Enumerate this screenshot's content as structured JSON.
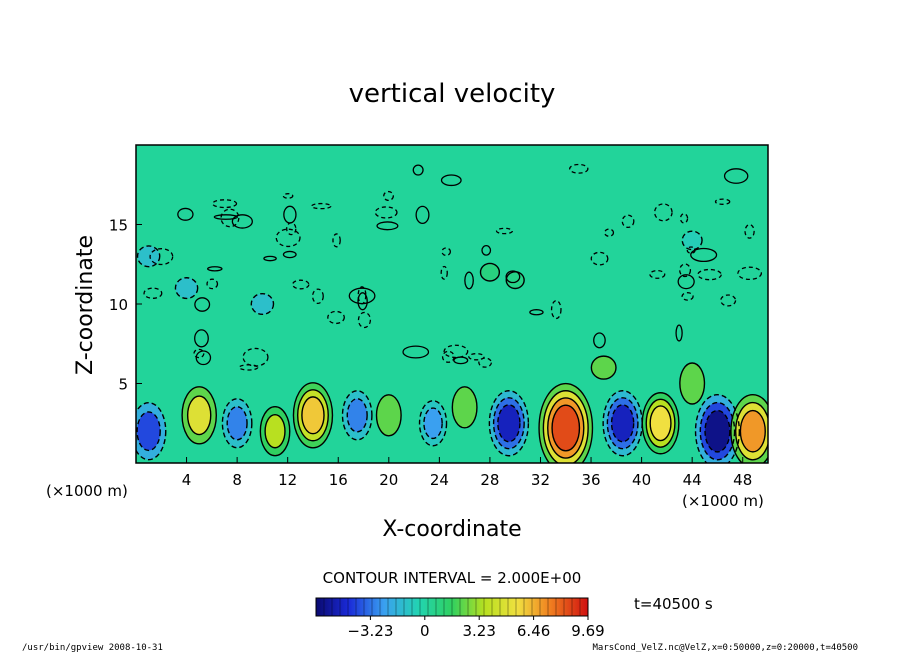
{
  "chart_data": {
    "type": "heatmap",
    "title": "vertical velocity",
    "xlabel": "X-coordinate",
    "ylabel": "Z-coordinate",
    "x_unit": "(×1000 m)",
    "y_unit": "(×1000 m)",
    "xlim": [
      0,
      50
    ],
    "ylim": [
      0,
      20
    ],
    "x_ticks": [
      4,
      8,
      12,
      16,
      20,
      24,
      28,
      32,
      36,
      40,
      44,
      48
    ],
    "y_ticks": [
      5,
      10,
      15
    ],
    "contour_interval_text": "CONTOUR INTERVAL = 2.000E+00",
    "time_label": "t=40500 s",
    "colorbar": {
      "range": [
        -6.46,
        9.69
      ],
      "tick_values": [
        -3.23,
        0,
        3.23,
        6.46,
        9.69
      ],
      "tick_labels": [
        "−3.23",
        "0",
        "3.23",
        "6.46",
        "9.69"
      ]
    },
    "features": [
      {
        "x": 34.0,
        "z": 2.2,
        "value": 8.0
      },
      {
        "x": 46.0,
        "z": 2.0,
        "value": -6.0
      },
      {
        "x": 48.8,
        "z": 2.0,
        "value": 6.0
      },
      {
        "x": 14.0,
        "z": 3.0,
        "value": 5.0
      },
      {
        "x": 41.5,
        "z": 2.5,
        "value": 4.5
      },
      {
        "x": 5.0,
        "z": 3.0,
        "value": 4.0
      },
      {
        "x": 29.5,
        "z": 2.5,
        "value": -5.0
      },
      {
        "x": 38.5,
        "z": 2.5,
        "value": -5.0
      },
      {
        "x": 1.0,
        "z": 2.0,
        "value": -4.0
      },
      {
        "x": 8.0,
        "z": 2.5,
        "value": -3.0
      },
      {
        "x": 17.5,
        "z": 3.0,
        "value": -3.0
      },
      {
        "x": 23.5,
        "z": 2.5,
        "value": -2.5
      },
      {
        "x": 11.0,
        "z": 2.0,
        "value": 3.0
      },
      {
        "x": 26.0,
        "z": 3.5,
        "value": 2.0
      },
      {
        "x": 20.0,
        "z": 3.0,
        "value": 2.0
      },
      {
        "x": 44.0,
        "z": 5.0,
        "value": 2.0
      },
      {
        "x": 37.0,
        "z": 6.0,
        "value": 2.0
      },
      {
        "x": 10.0,
        "z": 10.0,
        "value": -1.5
      },
      {
        "x": 4.0,
        "z": 11.0,
        "value": -1.5
      },
      {
        "x": 1.0,
        "z": 13.0,
        "value": -1.5
      },
      {
        "x": 28.0,
        "z": 12.0,
        "value": 0.8
      },
      {
        "x": 30.0,
        "z": 11.5,
        "value": 0.6
      },
      {
        "x": 44.0,
        "z": 14.0,
        "value": -1.0
      }
    ]
  },
  "footer": {
    "left": "/usr/bin/gpview  2008-10-31",
    "right": "MarsCond_VelZ.nc@VelZ,x=0:50000,z=0:20000,t=40500"
  },
  "colors": {
    "background_field": "#22d49a",
    "negative_extreme": "#1010a0",
    "positive_extreme": "#d01010"
  }
}
